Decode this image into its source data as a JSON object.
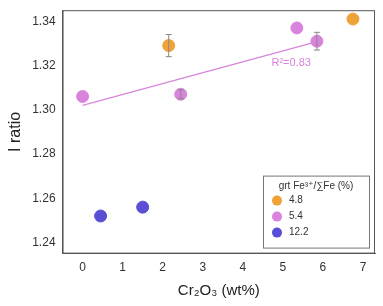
{
  "chart_data": {
    "type": "scatter",
    "x_label": "Cr₂O₃ (wt%)",
    "y_label": "I ratio",
    "xlim": [
      -0.5,
      7.3
    ],
    "xticks": [
      0,
      1,
      2,
      3,
      4,
      5,
      6,
      7
    ],
    "ylim": [
      1.235,
      1.345
    ],
    "yticks": [
      1.24,
      1.26,
      1.28,
      {
        "value": 1.3,
        "label": "1.30"
      },
      1.32,
      1.34
    ],
    "grid": false,
    "legend": "lower right",
    "legend_title": "grt Fe³⁺/∑Fe (%)",
    "series": [
      {
        "name": "4.8",
        "color": "#f0a23a",
        "marker": "circle",
        "x": [
          2.15,
          6.75
        ],
        "values": [
          1.329,
          1.341
        ],
        "errors": [
          0.005,
          null
        ]
      },
      {
        "name": "5.4",
        "color": "#d884dc",
        "marker": "circle",
        "x": [
          0,
          2.45,
          5.35,
          5.85
        ],
        "values": [
          1.306,
          1.307,
          1.337,
          1.331
        ],
        "errors": [
          null,
          0.002,
          null,
          0.004
        ],
        "fit": {
          "x": [
            0,
            5.9
          ],
          "y": [
            1.302,
            1.331
          ],
          "annotation": "R²=0.83"
        }
      },
      {
        "name": "12.2",
        "color": "#5a4fd4",
        "marker": "circle",
        "x": [
          0.45,
          1.5
        ],
        "values": [
          1.252,
          1.256
        ],
        "errors": [
          null,
          null
        ]
      }
    ]
  }
}
